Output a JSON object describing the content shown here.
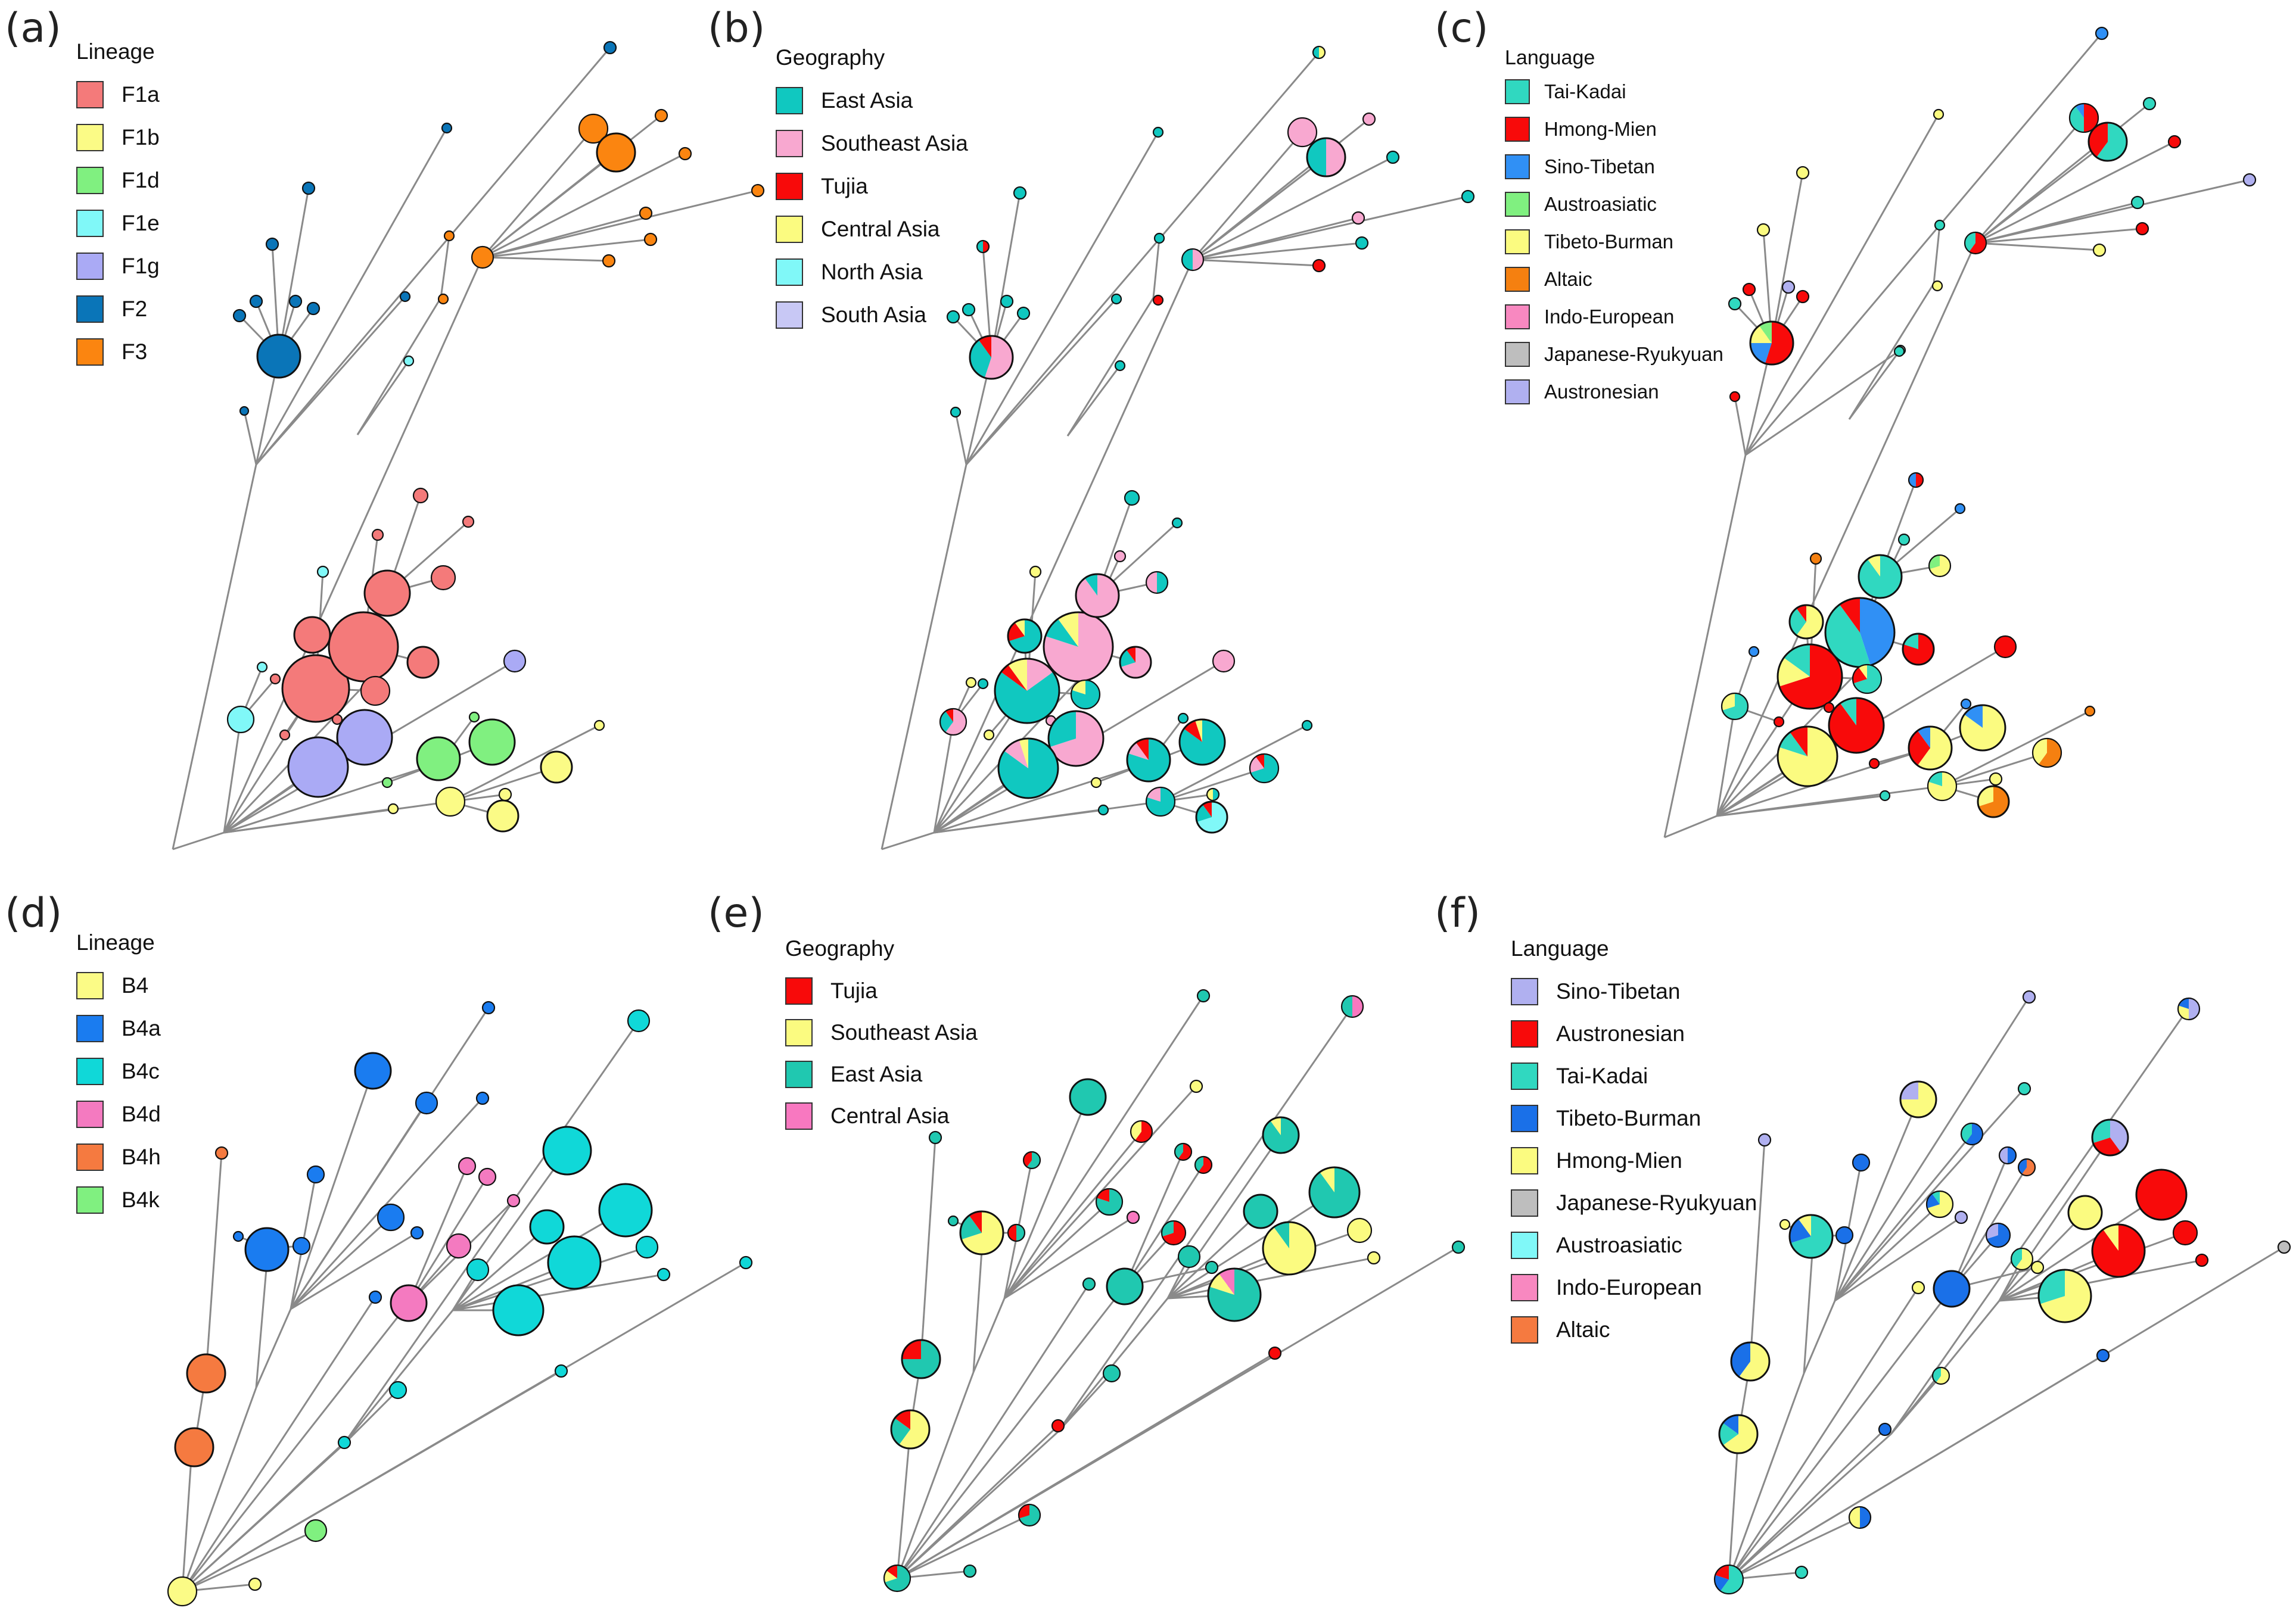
{
  "figure": {
    "panels": [
      {
        "id": "a",
        "label": "(a)",
        "legend_title": "Lineage",
        "legend": [
          {
            "name": "F1a",
            "color": "#F47A7A"
          },
          {
            "name": "F1b",
            "color": "#FBFB86"
          },
          {
            "name": "F1d",
            "color": "#80F080"
          },
          {
            "name": "F1e",
            "color": "#80F8F8"
          },
          {
            "name": "F1g",
            "color": "#AAAAF5"
          },
          {
            "name": "F2",
            "color": "#0A75B8"
          },
          {
            "name": "F3",
            "color": "#FB8510"
          }
        ]
      },
      {
        "id": "b",
        "label": "(b)",
        "legend_title": "Geography",
        "legend": [
          {
            "name": "East Asia",
            "color": "#10C8C0"
          },
          {
            "name": "Southeast Asia",
            "color": "#F8A8D0"
          },
          {
            "name": "Tujia",
            "color": "#F80A0A"
          },
          {
            "name": "Central Asia",
            "color": "#FBFB80"
          },
          {
            "name": "North Asia",
            "color": "#80F8F8"
          },
          {
            "name": "South Asia",
            "color": "#C8C8F5"
          }
        ]
      },
      {
        "id": "c",
        "label": "(c)",
        "legend_title": "Language",
        "legend": [
          {
            "name": "Tai-Kadai",
            "color": "#30D8C0"
          },
          {
            "name": "Hmong-Mien",
            "color": "#F80A0A"
          },
          {
            "name": "Sino-Tibetan",
            "color": "#3090F5"
          },
          {
            "name": "Austroasiatic",
            "color": "#80F080"
          },
          {
            "name": "Tibeto-Burman",
            "color": "#FBFB80"
          },
          {
            "name": "Altaic",
            "color": "#F58010"
          },
          {
            "name": "Indo-European",
            "color": "#F888C0"
          },
          {
            "name": "Japanese-Ryukyuan",
            "color": "#BEBEBE"
          },
          {
            "name": "Austronesian",
            "color": "#B0B0F0"
          }
        ]
      },
      {
        "id": "d",
        "label": "(d)",
        "legend_title": "Lineage",
        "legend": [
          {
            "name": "B4",
            "color": "#FBFB86"
          },
          {
            "name": "B4a",
            "color": "#1A7CF0"
          },
          {
            "name": "B4c",
            "color": "#10D8D8"
          },
          {
            "name": "B4d",
            "color": "#F47AC0"
          },
          {
            "name": "B4h",
            "color": "#F57A40"
          },
          {
            "name": "B4k",
            "color": "#80F080"
          }
        ]
      },
      {
        "id": "e",
        "label": "(e)",
        "legend_title": "Geography",
        "legend": [
          {
            "name": "Tujia",
            "color": "#F80A0A"
          },
          {
            "name": "Southeast Asia",
            "color": "#FBFB80"
          },
          {
            "name": "East Asia",
            "color": "#20C8B0"
          },
          {
            "name": "Central Asia",
            "color": "#F878C0"
          }
        ]
      },
      {
        "id": "f",
        "label": "(f)",
        "legend_title": "Language",
        "legend": [
          {
            "name": "Sino-Tibetan",
            "color": "#B0B0F0"
          },
          {
            "name": "Austronesian",
            "color": "#F80A0A"
          },
          {
            "name": "Tai-Kadai",
            "color": "#30D8C0"
          },
          {
            "name": "Tibeto-Burman",
            "color": "#1A70E8"
          },
          {
            "name": "Hmong-Mien",
            "color": "#FBFB80"
          },
          {
            "name": "Japanese-Ryukyuan",
            "color": "#BEBEBE"
          },
          {
            "name": "Austroasiatic",
            "color": "#80F8F8"
          },
          {
            "name": "Indo-European",
            "color": "#F888C0"
          },
          {
            "name": "Altaic",
            "color": "#F57A40"
          }
        ]
      }
    ]
  }
}
